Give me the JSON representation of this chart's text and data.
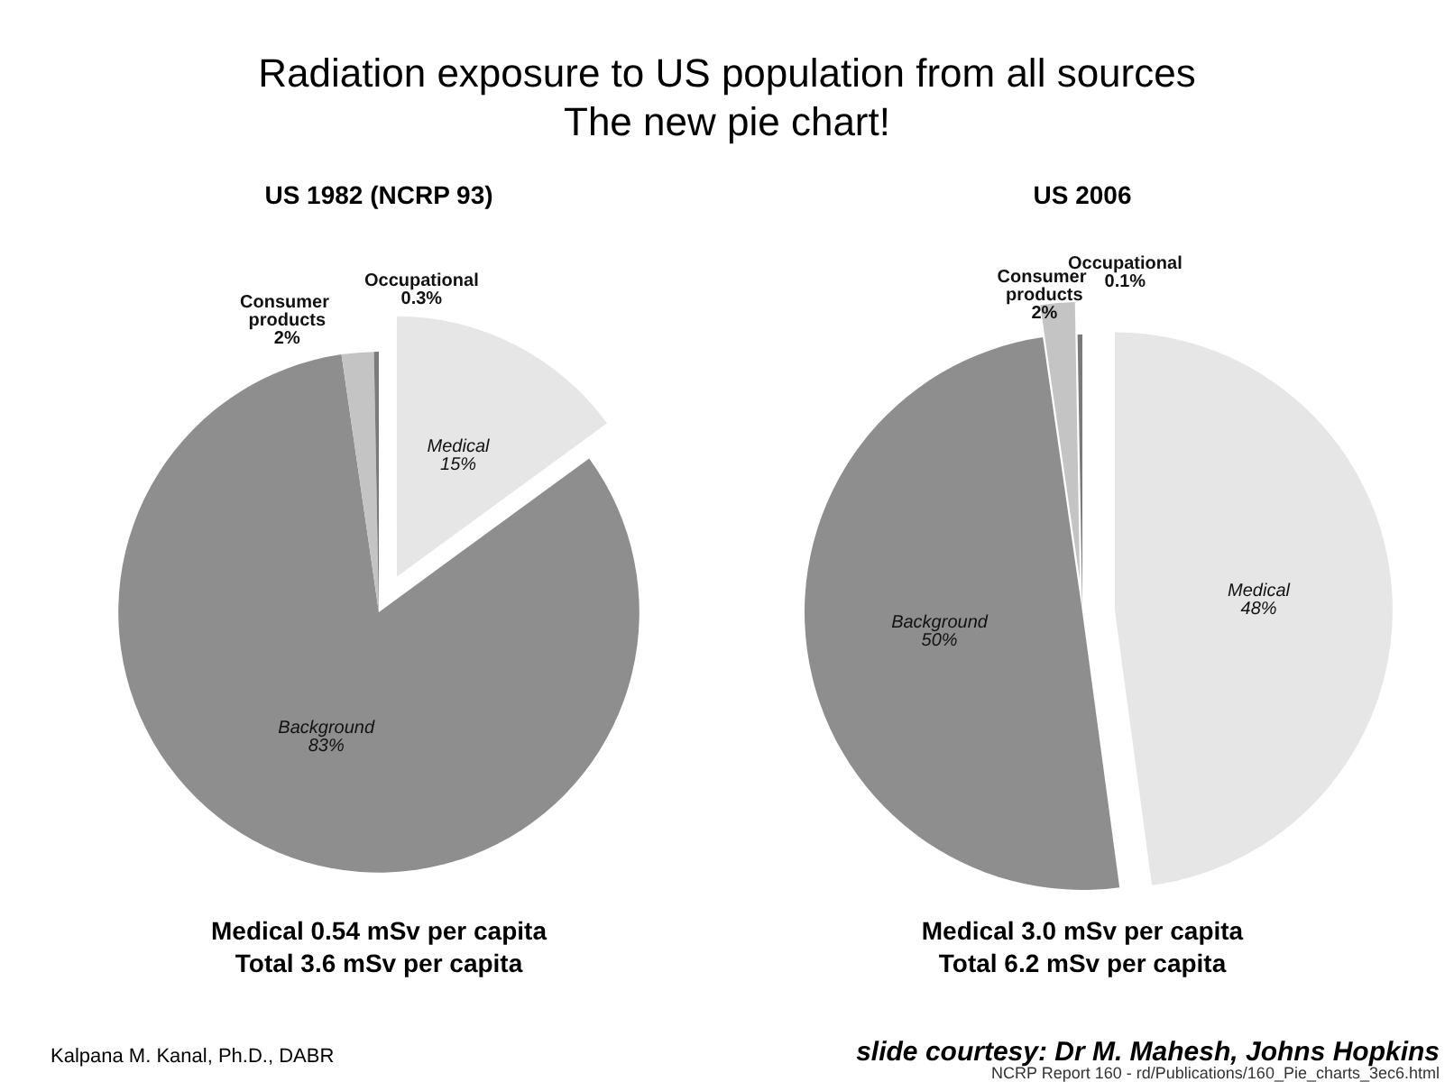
{
  "chart_data": [
    {
      "type": "other",
      "title": "Radiation exposure to US population from all sources",
      "subtitle": "The new pie chart!",
      "annotations": [
        "Kalpana M. Kanal, Ph.D., DABR",
        "slide courtesy: Dr M. Mahesh, Johns Hopkins",
        "NCRP Report 160 - rd/Publications/160_Pie_charts_3ec6.html"
      ]
    },
    {
      "type": "pie",
      "title": "US 1982 (NCRP 93)",
      "categories": [
        "Medical",
        "Background",
        "Consumer products",
        "Occupational"
      ],
      "values": [
        15,
        83,
        2,
        0.3
      ],
      "colors": [
        "#e6e6e6",
        "#8e8e8e",
        "#c4c4c4",
        "#7a7a7a"
      ],
      "value_labels": [
        "15%",
        "83%",
        "2%",
        "0.3%"
      ],
      "annotations": [
        "Medical 0.54 mSv per capita",
        "Total 3.6 mSv per capita"
      ]
    },
    {
      "type": "pie",
      "title": "US 2006",
      "categories": [
        "Medical",
        "Background",
        "Consumer products",
        "Occupational"
      ],
      "values": [
        48,
        50,
        2,
        0.1
      ],
      "colors": [
        "#e6e6e6",
        "#8e8e8e",
        "#c4c4c4",
        "#7a7a7a"
      ],
      "value_labels": [
        "48%",
        "50%",
        "2%",
        "0.1%"
      ],
      "annotations": [
        "Medical 3.0 mSv per capita",
        "Total 6.2 mSv per capita"
      ]
    }
  ]
}
